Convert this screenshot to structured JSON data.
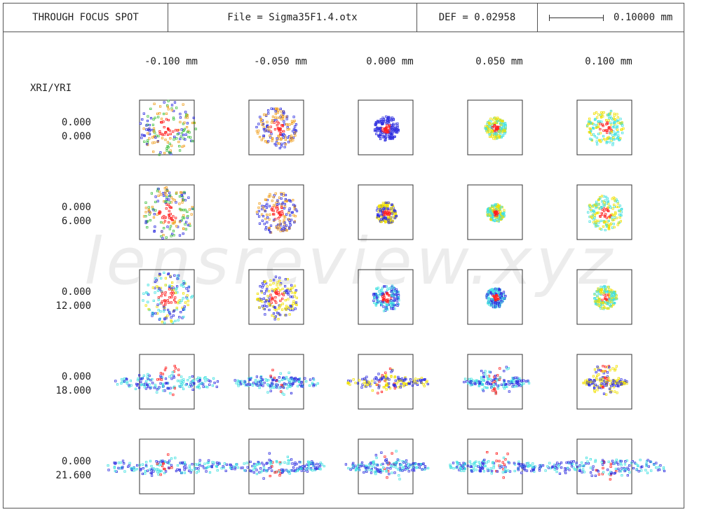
{
  "header": {
    "title": "THROUGH FOCUS SPOT",
    "file": "File = Sigma35F1.4.otx",
    "def": "DEF = 0.02958",
    "scale": "0.10000 mm"
  },
  "axis_label": "XRI/YRI",
  "columns": [
    "-0.100  mm",
    "-0.050  mm",
    "0.000  mm",
    "0.050  mm",
    "0.100  mm"
  ],
  "rows": [
    {
      "x": "0.000",
      "y": "0.000"
    },
    {
      "x": "0.000",
      "y": "6.000"
    },
    {
      "x": "0.000",
      "y": "12.000"
    },
    {
      "x": "0.000",
      "y": "18.000"
    },
    {
      "x": "0.000",
      "y": "21.600"
    }
  ],
  "watermark": "lensreview.xyz",
  "colors": {
    "frame": "#555555",
    "red": "#ff2020",
    "blue": "#3030e0",
    "green": "#40c040",
    "yellow": "#f0e000",
    "cyan": "#40e0e0",
    "orange": "#f0a020"
  }
}
